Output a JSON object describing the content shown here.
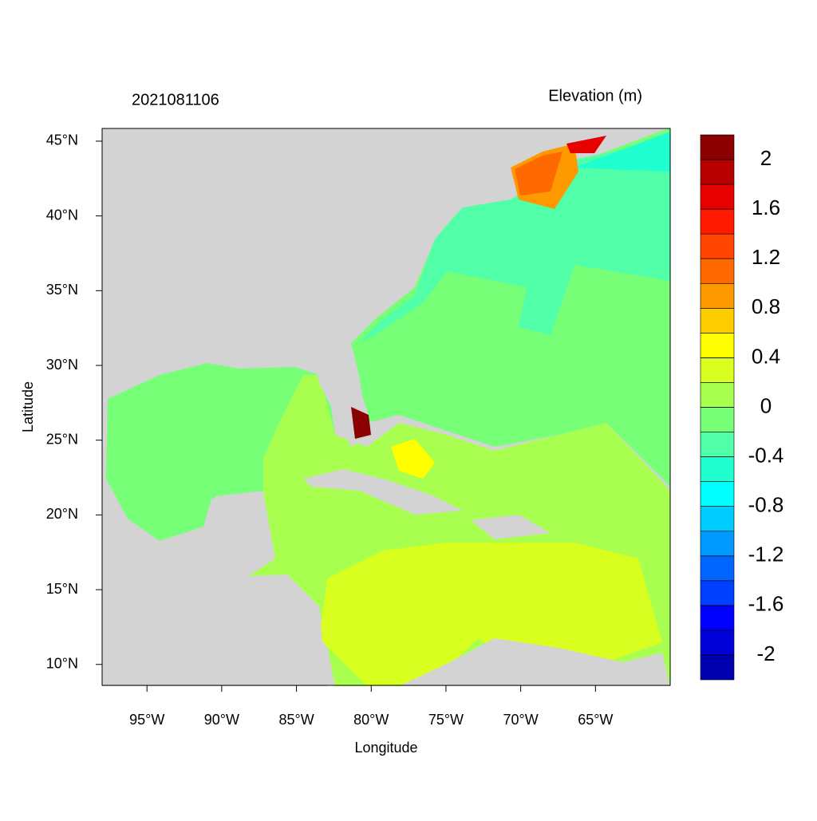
{
  "title": "2021081106",
  "map": {
    "xlabel": "Longitude",
    "ylabel": "Latitude",
    "xlim": [
      -98,
      -60
    ],
    "ylim": [
      8.6,
      45.85
    ],
    "xticks": [
      {
        "value": -95,
        "label": "95°W"
      },
      {
        "value": -90,
        "label": "90°W"
      },
      {
        "value": -85,
        "label": "85°W"
      },
      {
        "value": -80,
        "label": "80°W"
      },
      {
        "value": -75,
        "label": "75°W"
      },
      {
        "value": -70,
        "label": "70°W"
      },
      {
        "value": -65,
        "label": "65°W"
      }
    ],
    "yticks": [
      {
        "value": 10,
        "label": "10°N"
      },
      {
        "value": 15,
        "label": "15°N"
      },
      {
        "value": 20,
        "label": "20°N"
      },
      {
        "value": 25,
        "label": "25°N"
      },
      {
        "value": 30,
        "label": "30°N"
      },
      {
        "value": 35,
        "label": "35°N"
      },
      {
        "value": 40,
        "label": "40°N"
      },
      {
        "value": 45,
        "label": "45°N"
      }
    ]
  },
  "colorbar": {
    "title": "Elevation (m)",
    "lim": [
      -2.2,
      2.2
    ],
    "ticks": [
      -2,
      -1.6,
      -1.2,
      -0.8,
      -0.4,
      0,
      0.4,
      0.8,
      1.2,
      1.6,
      2
    ],
    "colors": [
      "#0000b0",
      "#0000d8",
      "#0000ff",
      "#0040ff",
      "#0066ff",
      "#0099ff",
      "#00ccff",
      "#00ffff",
      "#20ffd0",
      "#50ffa8",
      "#78ff78",
      "#a8ff50",
      "#d8ff20",
      "#ffff00",
      "#ffcc00",
      "#ff9900",
      "#ff6a00",
      "#ff4500",
      "#ff1a00",
      "#e60000",
      "#b80000",
      "#8b0000"
    ]
  }
}
